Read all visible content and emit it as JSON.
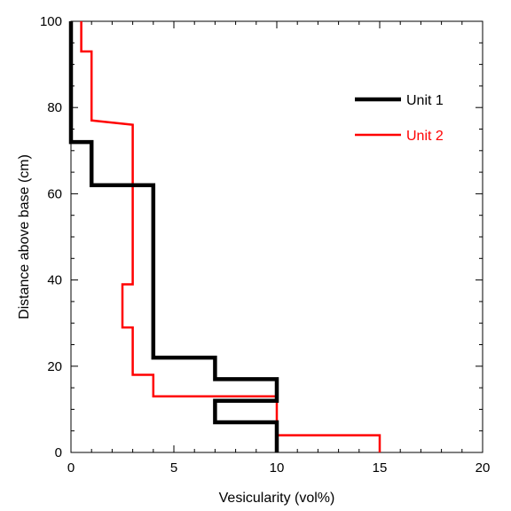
{
  "chart_data": {
    "type": "line",
    "title": "",
    "xlabel": "Vesicularity  (vol%)",
    "ylabel": "Distance above base (cm)",
    "xlim": [
      0,
      20
    ],
    "ylim": [
      0,
      100
    ],
    "xticks": [
      "0",
      "5",
      "10",
      "15",
      "20"
    ],
    "yticks": [
      "0",
      "20",
      "40",
      "60",
      "80",
      "100"
    ],
    "grid": false,
    "legend_position": "top-right",
    "series": [
      {
        "name": "Unit 1",
        "color": "#000000",
        "x": [
          0,
          0,
          1,
          1,
          4,
          4,
          7,
          7,
          10,
          10,
          7,
          7,
          10,
          10
        ],
        "y": [
          100,
          72,
          72,
          62,
          62,
          22,
          22,
          17,
          17,
          12,
          12,
          7,
          7,
          0
        ]
      },
      {
        "name": "Unit 2",
        "color": "#ff0000",
        "x": [
          0.5,
          0.5,
          1,
          1,
          3,
          3,
          2.5,
          2.5,
          3,
          3,
          4,
          4,
          10,
          10,
          15,
          15
        ],
        "y": [
          100,
          93,
          93,
          77,
          76,
          39,
          39,
          29,
          29,
          18,
          18,
          13,
          13,
          4,
          4,
          0
        ]
      }
    ]
  }
}
